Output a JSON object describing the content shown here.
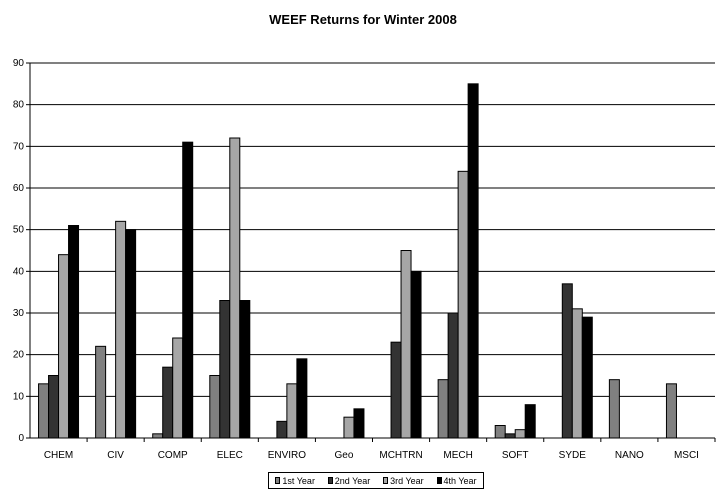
{
  "chart_data": {
    "type": "bar",
    "title": "WEEF Returns for Winter 2008",
    "xlabel": "",
    "ylabel": "",
    "ylim": [
      0,
      90
    ],
    "yticks": [
      0,
      10,
      20,
      30,
      40,
      50,
      60,
      70,
      80,
      90
    ],
    "grid": true,
    "legend_position": "bottom",
    "categories": [
      "CHEM",
      "CIV",
      "COMP",
      "ELEC",
      "ENVIRO",
      "Geo",
      "MCHTRN",
      "MECH",
      "SOFT",
      "SYDE",
      "NANO",
      "MSCI"
    ],
    "series": [
      {
        "name": "1st Year",
        "color": "#808080",
        "values": [
          13,
          22,
          1,
          15,
          0,
          0,
          0,
          14,
          3,
          0,
          14,
          13
        ]
      },
      {
        "name": "2nd Year",
        "color": "#333333",
        "values": [
          15,
          0,
          17,
          33,
          4,
          0,
          23,
          30,
          1,
          37,
          0,
          0
        ]
      },
      {
        "name": "3rd Year",
        "color": "#a6a6a6",
        "values": [
          44,
          52,
          24,
          72,
          13,
          5,
          45,
          64,
          2,
          31,
          0,
          0
        ]
      },
      {
        "name": "4th Year",
        "color": "#000000",
        "values": [
          51,
          50,
          71,
          33,
          19,
          7,
          40,
          85,
          8,
          29,
          0,
          0
        ]
      }
    ]
  }
}
